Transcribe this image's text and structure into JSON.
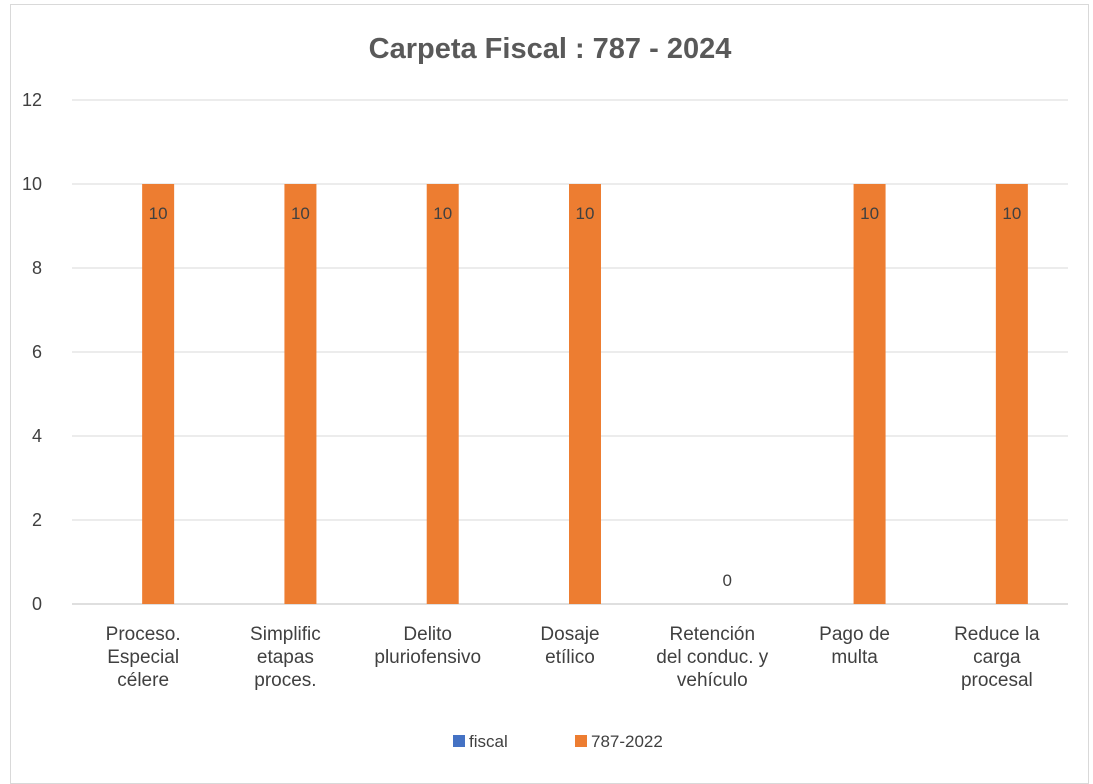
{
  "chart_data": {
    "type": "bar",
    "title": "Carpeta Fiscal : 787 - 2024",
    "xlabel": "",
    "ylabel": "",
    "ylim": [
      0,
      12
    ],
    "yticks": [
      0,
      2,
      4,
      6,
      8,
      10,
      12
    ],
    "grid": true,
    "legend_position": "bottom",
    "categories": [
      [
        "Proceso.",
        "Especial",
        "célere"
      ],
      [
        "Simplific",
        "etapas",
        "proces."
      ],
      [
        "Delito",
        "pluriofensivo"
      ],
      [
        "Dosaje",
        "etílico"
      ],
      [
        "Retención",
        "del conduc. y",
        "vehículo"
      ],
      [
        "Pago de",
        "multa"
      ],
      [
        "Reduce la",
        "carga",
        "procesal"
      ]
    ],
    "series": [
      {
        "name": "fiscal",
        "color": "#4472C4",
        "values": [
          null,
          null,
          null,
          null,
          null,
          null,
          null
        ]
      },
      {
        "name": "787-2022",
        "color": "#ED7D31",
        "values": [
          10,
          10,
          10,
          10,
          0,
          10,
          10
        ],
        "data_labels": [
          "10",
          "10",
          "10",
          "10",
          "0",
          "10",
          "10"
        ]
      }
    ]
  }
}
